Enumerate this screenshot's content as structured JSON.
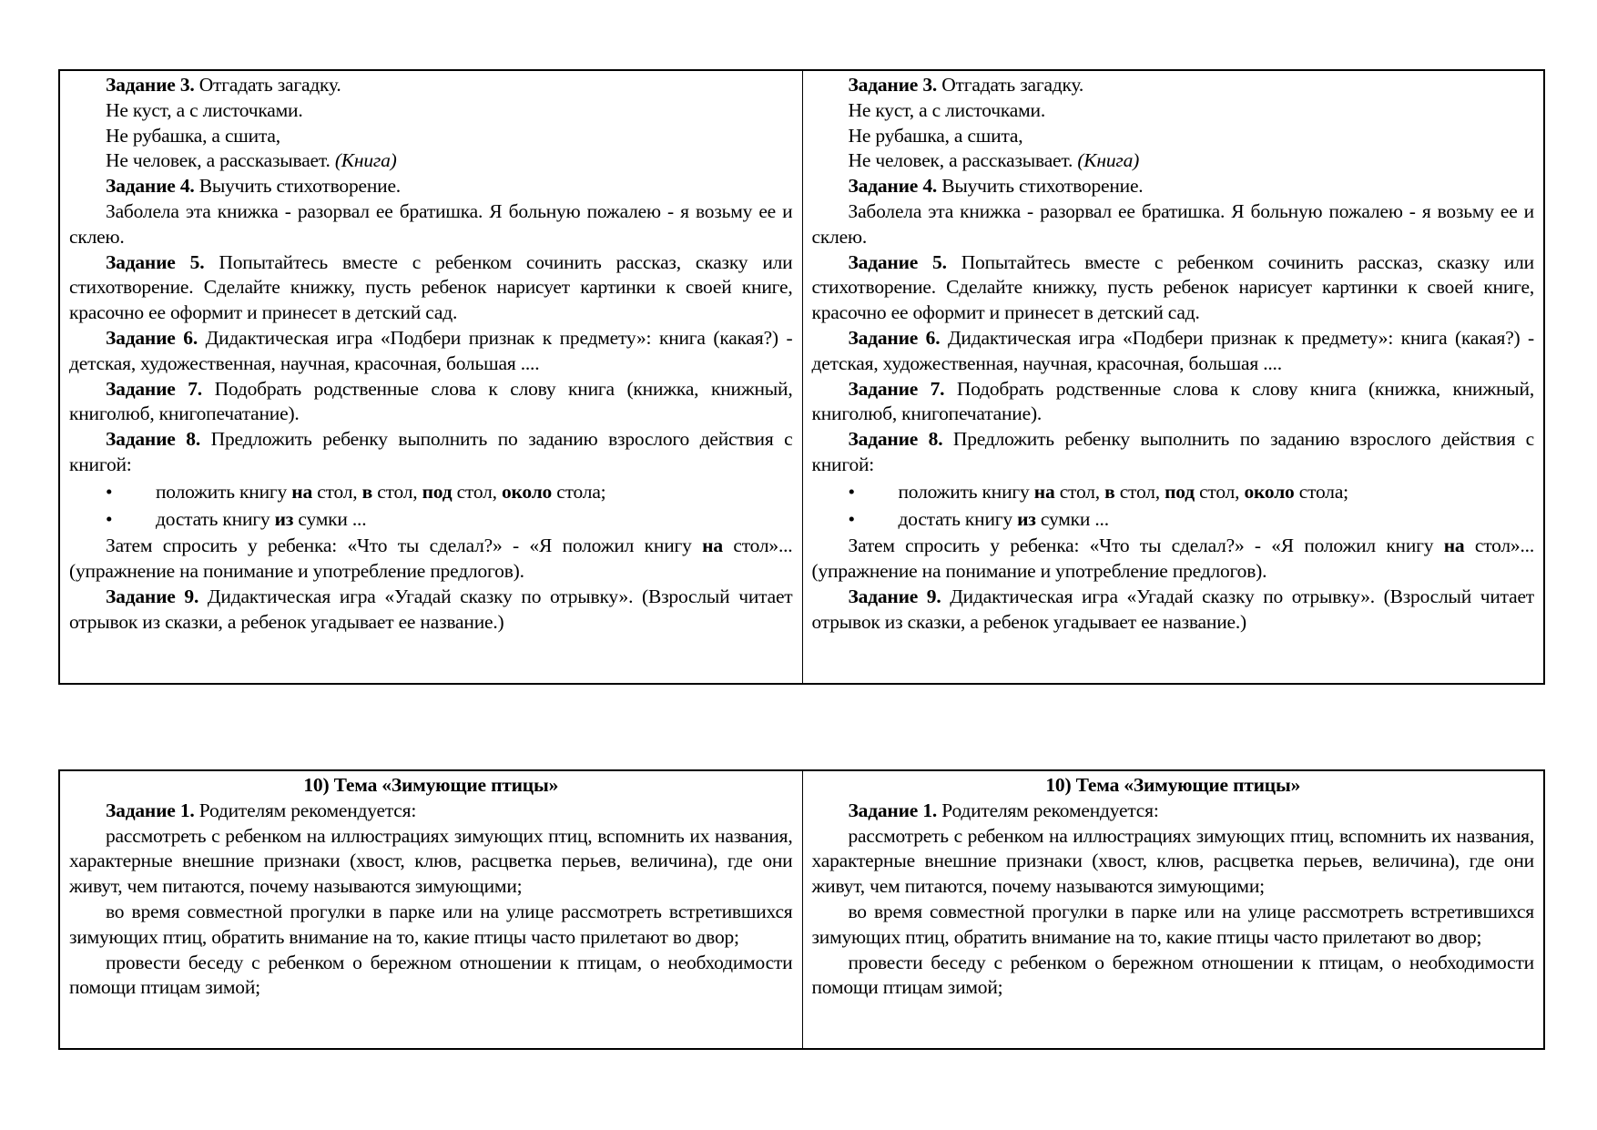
{
  "tables": [
    {
      "cells": [
        {
          "paragraphs": [
            {
              "type": "p",
              "runs": [
                {
                  "t": "Задание 3.",
                  "b": true
                },
                {
                  "t": " Отгадать загадку."
                }
              ]
            },
            {
              "type": "p",
              "runs": [
                {
                  "t": "Не куст, а с листочками."
                }
              ]
            },
            {
              "type": "p",
              "runs": [
                {
                  "t": "Не рубашка, а сшита,"
                }
              ]
            },
            {
              "type": "p",
              "runs": [
                {
                  "t": "Не человек, а рассказывает. "
                },
                {
                  "t": "(Книга)",
                  "i": true
                }
              ]
            },
            {
              "type": "p",
              "runs": [
                {
                  "t": "Задание 4.",
                  "b": true
                },
                {
                  "t": " Выучить стихотворение."
                }
              ]
            },
            {
              "type": "p",
              "runs": [
                {
                  "t": "Заболела эта книжка - разорвал ее братишка. Я больную пожалею - я возьму ее и склею."
                }
              ]
            },
            {
              "type": "p",
              "runs": [
                {
                  "t": "Задание 5.",
                  "b": true
                },
                {
                  "t": " Попытайтесь вместе с ребенком сочинить рассказ, сказку или стихотворение. Сделайте книжку, пусть ребенок нарисует картинки к своей книге, красочно ее оформит и принесет в детский сад."
                }
              ]
            },
            {
              "type": "p",
              "runs": [
                {
                  "t": "Задание 6.",
                  "b": true
                },
                {
                  "t": " Дидактическая игра «Подбери признак к предмету»: книга (какая?) - детская, художественная, научная, красочная, большая ...."
                }
              ]
            },
            {
              "type": "p",
              "runs": [
                {
                  "t": "Задание 7.",
                  "b": true
                },
                {
                  "t": " Подобрать родственные слова к слову книга (книжка, книжный, книголюб, книгопечатание)."
                }
              ]
            },
            {
              "type": "p",
              "runs": [
                {
                  "t": "Задание 8.",
                  "b": true
                },
                {
                  "t": " Предложить ребенку выполнить по заданию взрослого действия с книгой:"
                }
              ]
            },
            {
              "type": "bullet",
              "runs": [
                {
                  "t": "положить книгу "
                },
                {
                  "t": "на",
                  "b": true
                },
                {
                  "t": " стол, "
                },
                {
                  "t": "в",
                  "b": true
                },
                {
                  "t": " стол, "
                },
                {
                  "t": "под",
                  "b": true
                },
                {
                  "t": " стол, "
                },
                {
                  "t": "около",
                  "b": true
                },
                {
                  "t": " стола;"
                }
              ]
            },
            {
              "type": "bullet",
              "runs": [
                {
                  "t": "достать книгу "
                },
                {
                  "t": "из",
                  "b": true
                },
                {
                  "t": " сумки ..."
                }
              ]
            },
            {
              "type": "p",
              "runs": [
                {
                  "t": "Затем спросить у ребенка: «Что ты сделал?» - «Я положил книгу "
                },
                {
                  "t": "на",
                  "b": true
                },
                {
                  "t": " стол»... (упражнение на понимание и употребление предлогов)."
                }
              ]
            },
            {
              "type": "p",
              "runs": [
                {
                  "t": "Задание 9.",
                  "b": true
                },
                {
                  "t": " Дидактическая игра «Угадай сказку по отрывку». (Взрослый читает отрывок из сказки, а ребенок угадывает ее название.)"
                }
              ]
            }
          ]
        },
        {
          "paragraphs": [
            {
              "type": "p",
              "runs": [
                {
                  "t": "Задание 3.",
                  "b": true
                },
                {
                  "t": " Отгадать загадку."
                }
              ]
            },
            {
              "type": "p",
              "runs": [
                {
                  "t": "Не куст, а с листочками."
                }
              ]
            },
            {
              "type": "p",
              "runs": [
                {
                  "t": "Не рубашка, а сшита,"
                }
              ]
            },
            {
              "type": "p",
              "runs": [
                {
                  "t": "Не человек, а рассказывает. "
                },
                {
                  "t": "(Книга)",
                  "i": true
                }
              ]
            },
            {
              "type": "p",
              "runs": [
                {
                  "t": "Задание 4.",
                  "b": true
                },
                {
                  "t": " Выучить стихотворение."
                }
              ]
            },
            {
              "type": "p",
              "runs": [
                {
                  "t": "Заболела эта книжка - разорвал ее братишка. Я больную пожалею - я возьму ее и склею."
                }
              ]
            },
            {
              "type": "p",
              "runs": [
                {
                  "t": "Задание 5.",
                  "b": true
                },
                {
                  "t": " Попытайтесь вместе с ребенком сочинить рассказ, сказку или стихотворение. Сделайте книжку, пусть ребенок нарисует картинки к своей книге, красочно ее оформит и принесет в детский сад."
                }
              ]
            },
            {
              "type": "p",
              "runs": [
                {
                  "t": "Задание 6.",
                  "b": true
                },
                {
                  "t": " Дидактическая игра «Подбери признак к предмету»: книга (какая?) - детская, художественная, научная, красочная, большая ...."
                }
              ]
            },
            {
              "type": "p",
              "runs": [
                {
                  "t": "Задание 7.",
                  "b": true
                },
                {
                  "t": " Подобрать родственные слова к слову книга (книжка, книжный, книголюб, книгопечатание)."
                }
              ]
            },
            {
              "type": "p",
              "runs": [
                {
                  "t": "Задание 8.",
                  "b": true
                },
                {
                  "t": " Предложить ребенку выполнить по заданию взрослого действия с книгой:"
                }
              ]
            },
            {
              "type": "bullet",
              "runs": [
                {
                  "t": "положить книгу "
                },
                {
                  "t": "на",
                  "b": true
                },
                {
                  "t": " стол, "
                },
                {
                  "t": "в",
                  "b": true
                },
                {
                  "t": " стол, "
                },
                {
                  "t": "под",
                  "b": true
                },
                {
                  "t": " стол, "
                },
                {
                  "t": "около",
                  "b": true
                },
                {
                  "t": " стола;"
                }
              ]
            },
            {
              "type": "bullet",
              "runs": [
                {
                  "t": "достать книгу "
                },
                {
                  "t": "из",
                  "b": true
                },
                {
                  "t": " сумки ..."
                }
              ]
            },
            {
              "type": "p",
              "runs": [
                {
                  "t": "Затем спросить у ребенка: «Что ты сделал?» - «Я положил книгу "
                },
                {
                  "t": "на",
                  "b": true
                },
                {
                  "t": " стол»... (упражнение на понимание и употребление предлогов)."
                }
              ]
            },
            {
              "type": "p",
              "runs": [
                {
                  "t": "Задание 9.",
                  "b": true
                },
                {
                  "t": " Дидактическая игра «Угадай сказку по отрывку». (Взрослый читает отрывок из сказки, а ребенок угадывает ее название.)"
                }
              ]
            }
          ]
        }
      ]
    },
    {
      "cells": [
        {
          "paragraphs": [
            {
              "type": "heading",
              "runs": [
                {
                  "t": "10) Тема «Зимующие птицы»",
                  "b": true
                }
              ]
            },
            {
              "type": "p",
              "runs": [
                {
                  "t": "Задание 1.",
                  "b": true
                },
                {
                  "t": " Родителям рекомендуется:"
                }
              ]
            },
            {
              "type": "p",
              "runs": [
                {
                  "t": "рассмотреть с ребенком на иллюстрациях зимующих птиц, вспомнить их названия, характерные внешние признаки (хвост, клюв, расцветка перьев, величина), где они живут, чем питаются, почему называются зимующими;"
                }
              ]
            },
            {
              "type": "p",
              "runs": [
                {
                  "t": "во время совместной прогулки в парке или на улице рассмотреть встретившихся зимующих птиц, обратить внимание на то, какие птицы часто прилетают во двор;"
                }
              ]
            },
            {
              "type": "p",
              "runs": [
                {
                  "t": "провести беседу с ребенком о бережном отношении к птицам, о необходимости помощи птицам зимой;"
                }
              ]
            }
          ]
        },
        {
          "paragraphs": [
            {
              "type": "heading",
              "runs": [
                {
                  "t": "10) Тема «Зимующие птицы»",
                  "b": true
                }
              ]
            },
            {
              "type": "p",
              "runs": [
                {
                  "t": "Задание 1.",
                  "b": true
                },
                {
                  "t": " Родителям рекомендуется:"
                }
              ]
            },
            {
              "type": "p",
              "runs": [
                {
                  "t": "рассмотреть с ребенком на иллюстрациях зимующих птиц, вспомнить их названия, характерные внешние признаки (хвост, клюв, расцветка перьев, величина), где они живут, чем питаются, почему называются зимующими;"
                }
              ]
            },
            {
              "type": "p",
              "runs": [
                {
                  "t": "во время совместной прогулки в парке или на улице рассмотреть встретившихся зимующих птиц, обратить внимание на то, какие птицы часто прилетают во двор;"
                }
              ]
            },
            {
              "type": "p",
              "runs": [
                {
                  "t": "провести беседу с ребенком о бережном отношении к птицам, о необходимости помощи птицам зимой;"
                }
              ]
            }
          ]
        }
      ]
    }
  ]
}
